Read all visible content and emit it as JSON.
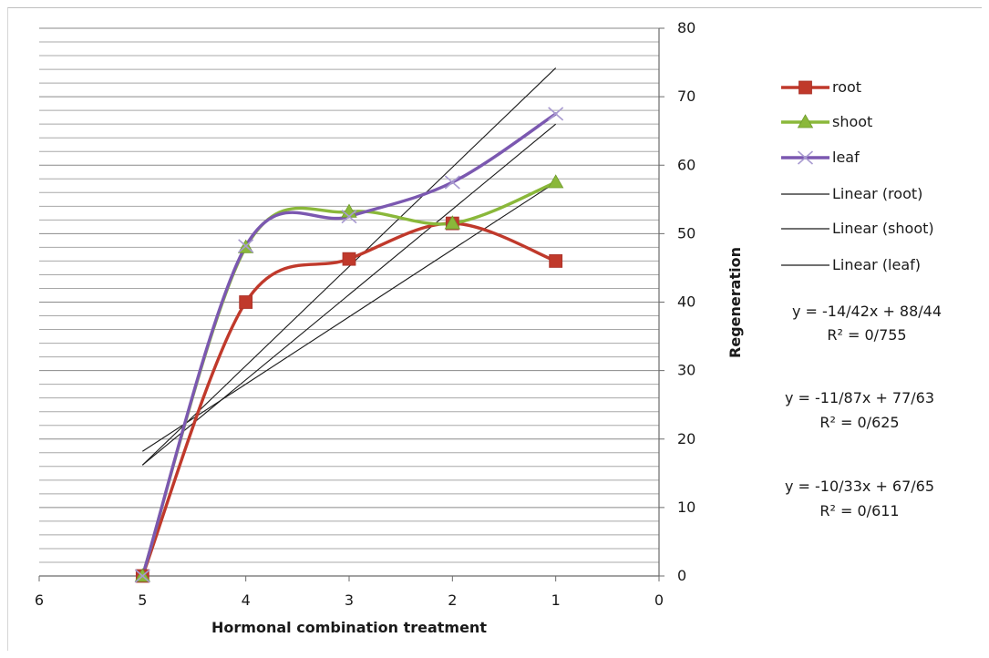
{
  "chart_data": {
    "type": "line",
    "title": "",
    "xlabel": "Hormonal combination treatment",
    "ylabel": "Regeneration",
    "x_reversed": true,
    "y_axis_position": "right",
    "xlim": [
      0,
      6
    ],
    "ylim": [
      0,
      80
    ],
    "x_ticks": [
      6,
      5,
      4,
      3,
      2,
      1,
      0
    ],
    "y_ticks": [
      0,
      10,
      20,
      30,
      40,
      50,
      60,
      70,
      80
    ],
    "y_minor_step": 2,
    "grid": true,
    "legend_position": "right",
    "series": [
      {
        "name": "root",
        "color": "#c0392b",
        "marker": "square",
        "x": [
          5,
          4,
          3,
          2,
          1
        ],
        "y": [
          0,
          40,
          46.3,
          51.5,
          46
        ]
      },
      {
        "name": "shoot",
        "color": "#8ab83a",
        "marker": "triangle",
        "x": [
          5,
          4,
          3,
          2,
          1
        ],
        "y": [
          0,
          48,
          53.2,
          51.5,
          57.5
        ]
      },
      {
        "name": "leaf",
        "color": "#7b58b0",
        "marker": "x",
        "x": [
          5,
          4,
          3,
          2,
          1
        ],
        "y": [
          0,
          48.2,
          52.5,
          57.5,
          67.5
        ]
      }
    ],
    "trendlines": [
      {
        "name": "Linear (root)",
        "color": "#1a1a1a",
        "x": [
          5,
          1
        ],
        "y": [
          18.2,
          57.5
        ]
      },
      {
        "name": "Linear (shoot)",
        "color": "#1a1a1a",
        "x": [
          5,
          1
        ],
        "y": [
          16.2,
          66
        ]
      },
      {
        "name": "Linear (leaf)",
        "color": "#1a1a1a",
        "x": [
          5,
          1
        ],
        "y": [
          16.2,
          74.2
        ]
      }
    ],
    "equations": [
      {
        "equation": "y = -14/42x + 88/44",
        "r2": "R² = 0/755"
      },
      {
        "equation": "y = -11/87x + 77/63",
        "r2": "R² = 0/625"
      },
      {
        "equation": "y = -10/33x + 67/65",
        "r2": "R² = 0/611"
      }
    ]
  }
}
